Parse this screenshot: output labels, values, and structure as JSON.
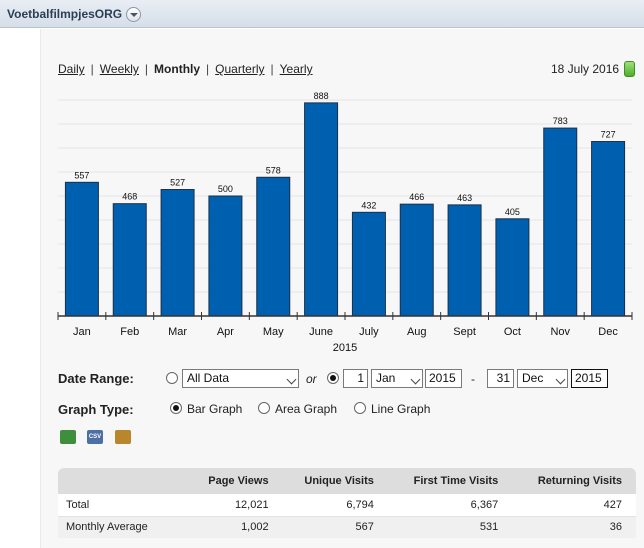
{
  "header": {
    "site_name": "VoetbalfilmpjesORG"
  },
  "period_nav": {
    "items": [
      {
        "label": "Daily",
        "current": false
      },
      {
        "label": "Weekly",
        "current": false
      },
      {
        "label": "Monthly",
        "current": true
      },
      {
        "label": "Quarterly",
        "current": false
      },
      {
        "label": "Yearly",
        "current": false
      }
    ],
    "separator": "|"
  },
  "date_label": "18 July 2016",
  "chart_data": {
    "type": "bar",
    "categories": [
      "Jan",
      "Feb",
      "Mar",
      "Apr",
      "May",
      "June",
      "July",
      "Aug",
      "Sept",
      "Oct",
      "Nov",
      "Dec"
    ],
    "values": [
      557,
      468,
      527,
      500,
      578,
      888,
      432,
      466,
      463,
      405,
      783,
      727
    ],
    "xlabel": "2015",
    "ylim": [
      0,
      1000
    ],
    "grid": true,
    "bar_color": "#0060b0"
  },
  "form": {
    "date_range_label": "Date Range:",
    "all_data_option": "All Data",
    "or_text": "or",
    "from_day": "1",
    "from_month": "Jan",
    "from_year": "2015",
    "range_dash": "-",
    "to_day": "31",
    "to_month": "Dec",
    "to_year": "2015",
    "graph_type_label": "Graph Type:",
    "graph_types": [
      "Bar Graph",
      "Area Graph",
      "Line Graph"
    ],
    "selected_graph_type": "Bar Graph"
  },
  "exports": {
    "csv_label": "CSV"
  },
  "table": {
    "headers": [
      "",
      "Page Views",
      "Unique Visits",
      "First Time Visits",
      "Returning Visits"
    ],
    "rows": [
      [
        "Total",
        "12,021",
        "6,794",
        "6,367",
        "427"
      ],
      [
        "Monthly Average",
        "1,002",
        "567",
        "531",
        "36"
      ]
    ]
  }
}
